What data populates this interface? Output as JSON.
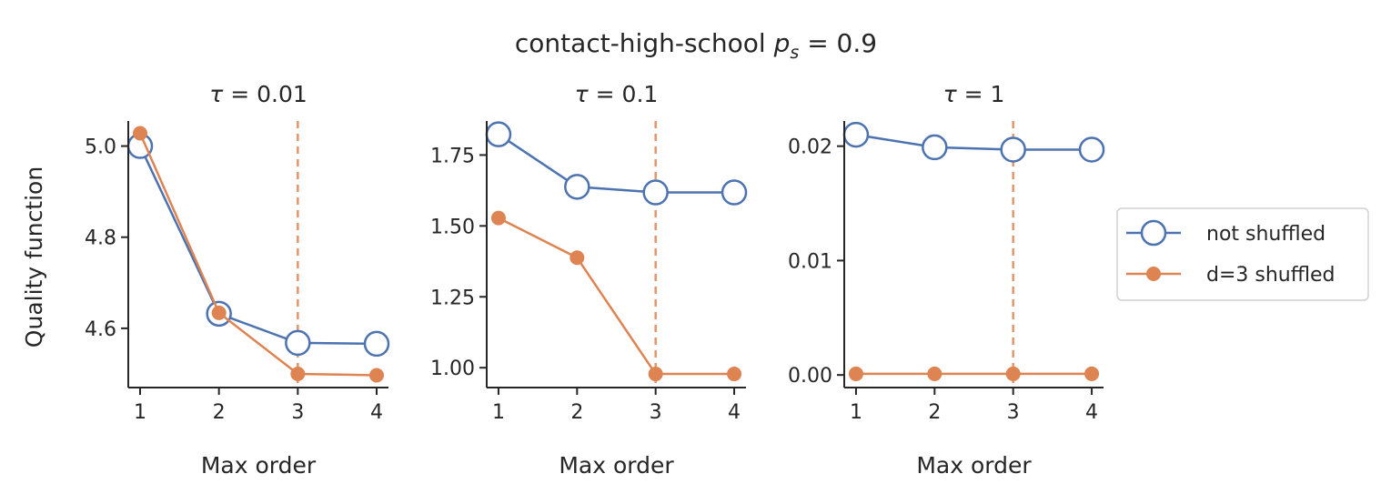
{
  "figure": {
    "suptitle_text": "contact-high-school ",
    "suptitle_var": "p",
    "suptitle_sub": "s",
    "suptitle_value": " = 0.9"
  },
  "legend": {
    "placement": "center-right",
    "items": [
      "not shuffled",
      "d=3 shuffled"
    ]
  },
  "colors": {
    "not_shuffled": "#4c72b0",
    "shuffled": "#dd8452",
    "axis": "#262626"
  },
  "chart_data": [
    {
      "type": "line",
      "title_var": "τ",
      "title_value": " = 0.01",
      "xlabel": "Max order",
      "ylabel": "Quality function",
      "x": [
        1,
        2,
        3,
        4
      ],
      "xticks": [
        "1",
        "2",
        "3",
        "4"
      ],
      "xlim": [
        0.85,
        4.15
      ],
      "ylim": [
        4.47,
        5.055
      ],
      "yticks": [
        4.6,
        4.8,
        5.0
      ],
      "yticklabels": [
        "4.6",
        "4.8",
        "5.0"
      ],
      "vline_x": 3,
      "series": [
        {
          "name": "not shuffled",
          "values": [
            5.0,
            4.632,
            4.568,
            4.566
          ]
        },
        {
          "name": "d=3 shuffled",
          "values": [
            5.028,
            4.634,
            4.5,
            4.497
          ]
        }
      ]
    },
    {
      "type": "line",
      "title_var": "τ",
      "title_value": " = 0.1",
      "xlabel": "Max order",
      "ylabel": "",
      "x": [
        1,
        2,
        3,
        4
      ],
      "xticks": [
        "1",
        "2",
        "3",
        "4"
      ],
      "xlim": [
        0.85,
        4.15
      ],
      "ylim": [
        0.93,
        1.87
      ],
      "yticks": [
        1.0,
        1.25,
        1.5,
        1.75
      ],
      "yticklabels": [
        "1.00",
        "1.25",
        "1.50",
        "1.75"
      ],
      "vline_x": 3,
      "series": [
        {
          "name": "not shuffled",
          "values": [
            1.823,
            1.638,
            1.618,
            1.618
          ]
        },
        {
          "name": "d=3 shuffled",
          "values": [
            1.528,
            1.388,
            0.978,
            0.978
          ]
        }
      ]
    },
    {
      "type": "line",
      "title_var": "τ",
      "title_value": " = 1",
      "xlabel": "Max order",
      "ylabel": "",
      "x": [
        1,
        2,
        3,
        4
      ],
      "xticks": [
        "1",
        "2",
        "3",
        "4"
      ],
      "xlim": [
        0.85,
        4.15
      ],
      "ylim": [
        -0.0011,
        0.0222
      ],
      "yticks": [
        0.0,
        0.01,
        0.02
      ],
      "yticklabels": [
        "0.00",
        "0.01",
        "0.02"
      ],
      "vline_x": 3,
      "series": [
        {
          "name": "not shuffled",
          "values": [
            0.021,
            0.0199,
            0.0197,
            0.0197
          ]
        },
        {
          "name": "d=3 shuffled",
          "values": [
            0.0001,
            0.0001,
            0.0001,
            0.0001
          ]
        }
      ]
    }
  ]
}
